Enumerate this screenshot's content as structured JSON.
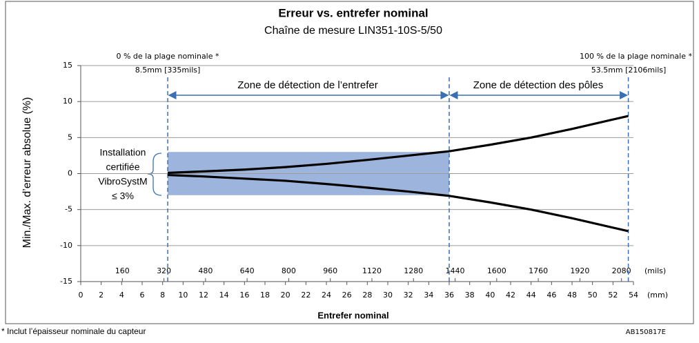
{
  "chart_data": {
    "type": "line",
    "title": "Erreur vs. entrefer nominal",
    "subtitle": "Chaîne de mesure LIN351-10S-5/50",
    "y_label": "Min./Max. d’erreur absolue (%)",
    "x_label": "Entrefer nominal",
    "x_unit": "(mm)",
    "x2_unit": "(mils)",
    "x": [
      8.5,
      12,
      16,
      20,
      24,
      28,
      32,
      36,
      40,
      44,
      48,
      53.5
    ],
    "series": [
      {
        "color": "#000000",
        "values": [
          0.1,
          0.3,
          0.55,
          0.9,
          1.35,
          1.9,
          2.5,
          3.1,
          4.0,
          5.0,
          6.2,
          8.0
        ]
      },
      {
        "color": "#000000",
        "values": [
          -0.2,
          -0.4,
          -0.7,
          -1.0,
          -1.45,
          -1.95,
          -2.5,
          -3.1,
          -4.0,
          -5.0,
          -6.2,
          -8.0
        ]
      }
    ],
    "xlim": [
      0,
      54
    ],
    "xticks": [
      0,
      2,
      4,
      6,
      8,
      10,
      12,
      14,
      16,
      18,
      20,
      22,
      24,
      26,
      28,
      30,
      32,
      34,
      36,
      38,
      40,
      42,
      44,
      46,
      48,
      50,
      52,
      54
    ],
    "x2lim": [
      0,
      2126
    ],
    "x2ticks": [
      160,
      320,
      480,
      640,
      800,
      960,
      1120,
      1280,
      1440,
      1600,
      1760,
      1920,
      2080
    ],
    "ylim": [
      -15,
      15
    ],
    "yticks": [
      15,
      10,
      5,
      0,
      -5,
      -10,
      -15
    ],
    "grid": true,
    "band": {
      "x": [
        8.5,
        36
      ],
      "y": [
        -3,
        3
      ],
      "color": "#9db4dc"
    },
    "markers": [
      8.5,
      36,
      53.5
    ],
    "marker_color": "#3b6fb3",
    "annotations": {
      "start_pct": "0 % de la plage nominale *",
      "start_pos": "8.5mm [335mils]",
      "end_pct": "100 % de la plage nominale *",
      "end_pos": "53.5mm [2106mils]",
      "zone_gap": "Zone de détection de l’entrefer",
      "zone_poles": "Zone de détection des pôles",
      "installation": [
        "Installation",
        "certifiée",
        "VibroSystM",
        "≤ 3%"
      ],
      "footnote": "* Inclut l’épaisseur nominale du capteur",
      "code": "AB150817E"
    }
  }
}
